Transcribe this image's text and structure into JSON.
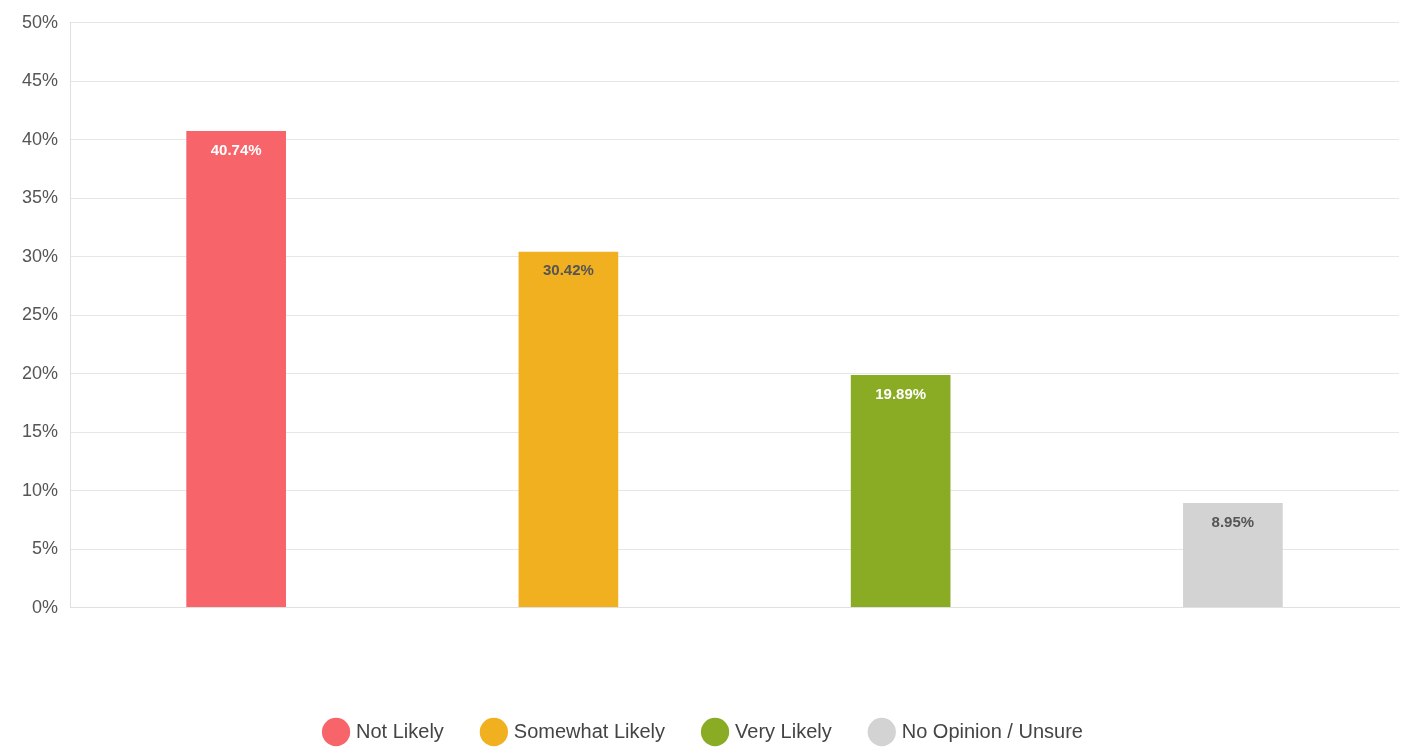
{
  "chart_data": {
    "type": "bar",
    "categories": [
      null,
      null,
      null,
      null
    ],
    "series": [
      {
        "name": "Not Likely",
        "color": "#f7646a",
        "values": [
          40.74,
          null,
          null,
          null
        ]
      },
      {
        "name": "Somewhat Likely",
        "color": "#f0b020",
        "values": [
          null,
          30.42,
          null,
          null
        ]
      },
      {
        "name": "Very Likely",
        "color": "#8aab24",
        "values": [
          null,
          null,
          19.89,
          null
        ]
      },
      {
        "name": "No Opinion / Unsure",
        "color": "#d3d3d3",
        "values": [
          null,
          null,
          null,
          8.95
        ]
      }
    ],
    "ylim": [
      0,
      50
    ],
    "yticks": [
      {
        "value": 0,
        "label": "0%"
      },
      {
        "value": 5,
        "label": "5%"
      },
      {
        "value": 10,
        "label": "10%"
      },
      {
        "value": 15,
        "label": "15%"
      },
      {
        "value": 20,
        "label": "20%"
      },
      {
        "value": 25,
        "label": "25%"
      },
      {
        "value": 30,
        "label": "30%"
      },
      {
        "value": 35,
        "label": "35%"
      },
      {
        "value": 40,
        "label": "40%"
      },
      {
        "value": 45,
        "label": "45%"
      },
      {
        "value": 50,
        "label": "50%"
      }
    ],
    "value_labels": [
      "40.74%",
      "30.42%",
      "19.89%",
      "8.95%"
    ],
    "grid": "y",
    "legend": "bottom"
  }
}
